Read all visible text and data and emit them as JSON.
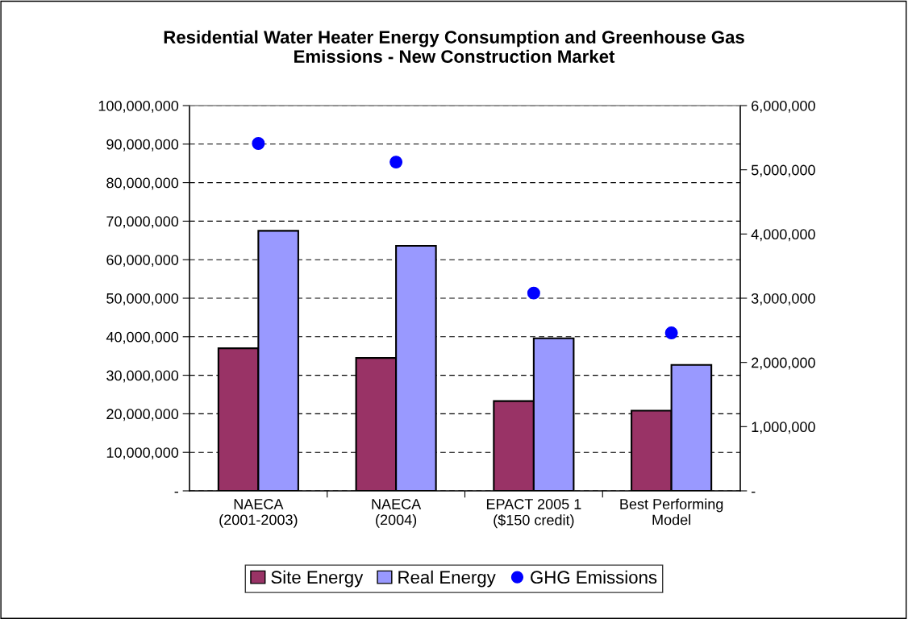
{
  "chart_data": {
    "type": "bar",
    "title": "Residential Water Heater Energy Consumption and Greenhouse Gas\nEmissions - New Construction Market",
    "categories": [
      "NAECA\n(2001-2003)",
      "NAECA\n(2004)",
      "EPACT 2005 1\n($150 credit)",
      "Best Performing\nModel"
    ],
    "series": [
      {
        "name": "Site Energy",
        "color": "#993366",
        "values": [
          37000000,
          34500000,
          23300000,
          20800000
        ]
      },
      {
        "name": "Real Energy",
        "color": "#9999ff",
        "values": [
          67500000,
          63600000,
          39600000,
          32700000
        ]
      },
      {
        "name": "GHG Emissions",
        "color": "#0000ff",
        "type": "scatter",
        "axis": "y2",
        "marker": "circle",
        "values": [
          5410000,
          5120000,
          3080000,
          2460000
        ]
      }
    ],
    "ylim": [
      0,
      100000000
    ],
    "yticks": [
      {
        "value": 0,
        "label": "-"
      },
      {
        "value": 10000000,
        "label": "10,000,000"
      },
      {
        "value": 20000000,
        "label": "20,000,000"
      },
      {
        "value": 30000000,
        "label": "30,000,000"
      },
      {
        "value": 40000000,
        "label": "40,000,000"
      },
      {
        "value": 50000000,
        "label": "50,000,000"
      },
      {
        "value": 60000000,
        "label": "60,000,000"
      },
      {
        "value": 70000000,
        "label": "70,000,000"
      },
      {
        "value": 80000000,
        "label": "80,000,000"
      },
      {
        "value": 90000000,
        "label": "90,000,000"
      },
      {
        "value": 100000000,
        "label": "100,000,000"
      }
    ],
    "y2lim": [
      0,
      6000000
    ],
    "y2ticks": [
      {
        "value": 0,
        "label": "-"
      },
      {
        "value": 1000000,
        "label": "1,000,000"
      },
      {
        "value": 2000000,
        "label": "2,000,000"
      },
      {
        "value": 3000000,
        "label": "3,000,000"
      },
      {
        "value": 4000000,
        "label": "4,000,000"
      },
      {
        "value": 5000000,
        "label": "5,000,000"
      },
      {
        "value": 6000000,
        "label": "6,000,000"
      }
    ],
    "grid": "y",
    "legend": "bottom"
  }
}
